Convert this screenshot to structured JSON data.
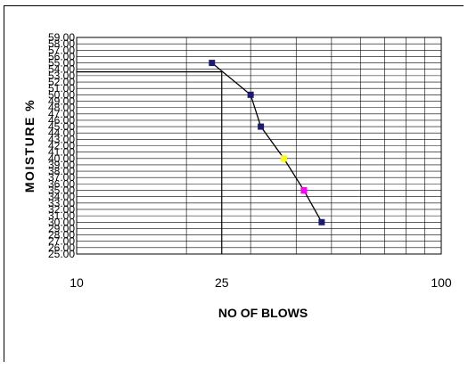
{
  "chart_data": {
    "type": "scatter",
    "title": "",
    "xlabel": "NO OF BLOWS",
    "ylabel": "MOISTURE %",
    "x_scale": "log",
    "xlim": [
      10,
      100
    ],
    "ylim": [
      25,
      59
    ],
    "y_ticks": [
      "59.00",
      "58.00",
      "57.00",
      "56.00",
      "55.00",
      "54.00",
      "53.00",
      "52.00",
      "51.00",
      "50.00",
      "49.00",
      "48.00",
      "47.00",
      "46.00",
      "45.00",
      "44.00",
      "43.00",
      "42.00",
      "41.00",
      "40.00",
      "39.00",
      "38.00",
      "37.00",
      "36.00",
      "35.00",
      "34.00",
      "33.00",
      "32.00",
      "31.00",
      "30.00",
      "29.00",
      "28.00",
      "27.00",
      "26.00",
      "25.00"
    ],
    "x_tick_labels": [
      {
        "value": 10,
        "label": "10"
      },
      {
        "value": 25,
        "label": "25"
      },
      {
        "value": 100,
        "label": "100"
      }
    ],
    "grid": true,
    "legend": "none",
    "points": [
      {
        "x": 23.5,
        "y": 55.0,
        "color": "#1a1a7a"
      },
      {
        "x": 30.0,
        "y": 50.0,
        "color": "#1a1a7a"
      },
      {
        "x": 32.0,
        "y": 45.0,
        "color": "#1a1a7a"
      },
      {
        "x": 37.0,
        "y": 40.0,
        "color": "#ffff00"
      },
      {
        "x": 42.0,
        "y": 35.0,
        "color": "#ff00ff"
      },
      {
        "x": 47.0,
        "y": 30.0,
        "color": "#1a1a7a"
      }
    ],
    "reference": {
      "x": 25,
      "y": 53.6
    }
  }
}
